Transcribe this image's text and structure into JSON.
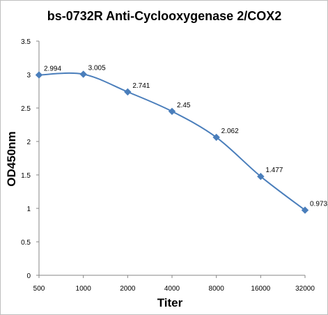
{
  "chart_data": {
    "type": "line",
    "title": "bs-0732R Anti-Cyclooxygenase 2/COX2",
    "xlabel": "Titer",
    "ylabel": "OD450nm",
    "categories": [
      "500",
      "1000",
      "2000",
      "4000",
      "8000",
      "16000",
      "32000"
    ],
    "series": [
      {
        "values": [
          2.994,
          3.005,
          2.741,
          2.45,
          2.062,
          1.477,
          0.973
        ]
      }
    ],
    "data_labels": [
      "2.994",
      "3.005",
      "2.741",
      "2.45",
      "2.062",
      "1.477",
      "0.973"
    ],
    "y_ticks": [
      "0",
      "0.5",
      "1",
      "1.5",
      "2",
      "2.5",
      "3",
      "3.5"
    ],
    "ylim": [
      0,
      3.5
    ],
    "smoothed": true,
    "marker": "diamond",
    "grid": false,
    "legend": "none",
    "colors": {
      "series": "#4a7ebb",
      "axis": "#868686"
    }
  }
}
